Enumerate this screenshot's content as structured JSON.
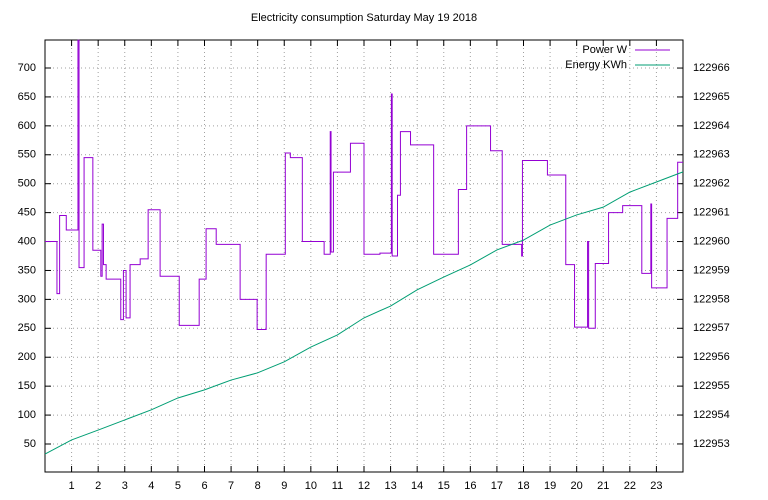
{
  "chart_data": {
    "type": "line",
    "title": "Electricity consumption Saturday May 19 2018",
    "xlim": [
      0,
      24
    ],
    "xticks": [
      1,
      2,
      3,
      4,
      5,
      6,
      7,
      8,
      9,
      10,
      11,
      12,
      13,
      14,
      15,
      16,
      17,
      18,
      19,
      20,
      21,
      22,
      23
    ],
    "ylim": [
      1.6,
      748.4
    ],
    "yticks": [
      50,
      100,
      150,
      200,
      250,
      300,
      350,
      400,
      450,
      500,
      550,
      600,
      650,
      700
    ],
    "y2lim": [
      122952.03,
      122966.97
    ],
    "y2ticks": [
      122953,
      122954,
      122955,
      122956,
      122957,
      122958,
      122959,
      122960,
      122961,
      122962,
      122963,
      122964,
      122965,
      122966
    ],
    "grid": true,
    "legend": "top right",
    "series": [
      {
        "name": "Power W",
        "color": "#9400d3",
        "x": [
          0,
          0.45,
          0.45,
          0.55,
          0.55,
          0.8,
          0.8,
          1.24,
          1.24,
          1.28,
          1.28,
          1.47,
          1.47,
          1.8,
          1.8,
          2.1,
          2.1,
          2.15,
          2.15,
          2.2,
          2.2,
          2.3,
          2.3,
          2.85,
          2.85,
          2.95,
          2.95,
          3.05,
          3.05,
          3.2,
          3.2,
          3.58,
          3.58,
          3.88,
          3.88,
          4.33,
          4.33,
          5.05,
          5.05,
          5.8,
          5.8,
          6.06,
          6.06,
          6.44,
          6.44,
          7.34,
          7.34,
          7.98,
          7.98,
          8.32,
          8.32,
          9.04,
          9.04,
          9.23,
          9.23,
          9.68,
          9.68,
          10.5,
          10.5,
          10.73,
          10.73,
          10.76,
          10.76,
          10.85,
          10.85,
          11.49,
          11.49,
          12.0,
          12.0,
          12.6,
          12.6,
          13.03,
          13.03,
          13.06,
          13.06,
          13.26,
          13.26,
          13.37,
          13.37,
          13.75,
          13.75,
          14.62,
          14.62,
          15.55,
          15.55,
          15.86,
          15.86,
          16.76,
          16.76,
          17.2,
          17.2,
          17.93,
          17.93,
          17.96,
          17.96,
          18.9,
          18.9,
          19.59,
          19.59,
          19.92,
          19.92,
          20.41,
          20.41,
          20.45,
          20.45,
          20.7,
          20.7,
          21.2,
          21.2,
          21.73,
          21.73,
          22.45,
          22.45,
          22.79,
          22.79,
          22.82,
          22.82,
          23.4,
          23.4,
          23.8,
          23.8,
          24
        ],
        "values": [
          400,
          400,
          310,
          310,
          445,
          445,
          420,
          420,
          748,
          748,
          355,
          355,
          545,
          545,
          385,
          385,
          340,
          340,
          430,
          430,
          360,
          360,
          335,
          335,
          265,
          265,
          350,
          350,
          268,
          268,
          360,
          360,
          370,
          370,
          455,
          455,
          340,
          340,
          255,
          255,
          335,
          335,
          422,
          422,
          395,
          395,
          300,
          300,
          248,
          248,
          378,
          378,
          553,
          553,
          545,
          545,
          400,
          400,
          378,
          378,
          590,
          590,
          382,
          382,
          520,
          520,
          570,
          570,
          378,
          378,
          380,
          380,
          655,
          655,
          375,
          375,
          480,
          480,
          590,
          590,
          567,
          567,
          378,
          378,
          490,
          490,
          600,
          600,
          557,
          557,
          395,
          395,
          375,
          375,
          540,
          540,
          515,
          515,
          360,
          360,
          252,
          252,
          400,
          400,
          250,
          250,
          362,
          362,
          450,
          450,
          462,
          462,
          345,
          345,
          465,
          465,
          320,
          320,
          440,
          440,
          537,
          537
        ]
      },
      {
        "name": "Energy KWh",
        "color": "#009e73",
        "axis": "y2",
        "x": [
          0,
          1,
          2,
          3,
          4,
          5,
          6,
          7,
          8,
          9,
          10,
          11,
          12,
          13,
          14,
          15,
          16,
          17,
          18,
          19,
          20,
          21,
          22,
          23,
          24
        ],
        "values": [
          122952.65,
          122953.14,
          122953.48,
          122953.83,
          122954.18,
          122954.59,
          122954.87,
          122955.21,
          122955.46,
          122955.84,
          122956.35,
          122956.77,
          122957.36,
          122957.77,
          122958.33,
          122958.77,
          122959.19,
          122959.71,
          122960.05,
          122960.57,
          122960.92,
          122961.19,
          122961.71,
          122962.06,
          122962.41
        ]
      }
    ]
  }
}
